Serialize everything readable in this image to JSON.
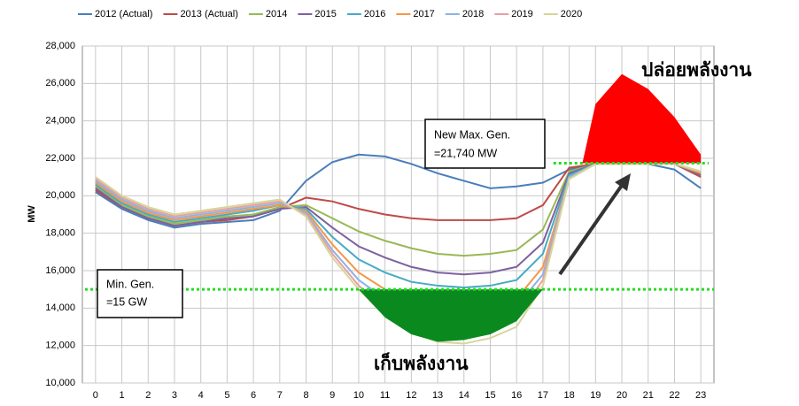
{
  "chart_data": {
    "type": "line",
    "ylabel": "MW",
    "x": [
      0,
      1,
      2,
      3,
      4,
      5,
      6,
      7,
      8,
      9,
      10,
      11,
      12,
      13,
      14,
      15,
      16,
      17,
      18,
      19,
      20,
      21,
      22,
      23
    ],
    "xlim": [
      -0.5,
      23.5
    ],
    "xticks": [
      0,
      1,
      2,
      3,
      4,
      5,
      6,
      7,
      8,
      9,
      10,
      11,
      12,
      13,
      14,
      15,
      16,
      17,
      18,
      19,
      20,
      21,
      22,
      23
    ],
    "ylim": [
      10000,
      28000
    ],
    "yticks": [
      {
        "value": 10000,
        "label": "10,000"
      },
      {
        "value": 12000,
        "label": "12,000"
      },
      {
        "value": 14000,
        "label": "14,000"
      },
      {
        "value": 16000,
        "label": "16,000"
      },
      {
        "value": 18000,
        "label": "18,000"
      },
      {
        "value": 20000,
        "label": "20,000"
      },
      {
        "value": 22000,
        "label": "22,000"
      },
      {
        "value": 24000,
        "label": "24,000"
      },
      {
        "value": 26000,
        "label": "26,000"
      },
      {
        "value": 28000,
        "label": "28,000"
      }
    ],
    "grid": true,
    "legend": "top",
    "series": [
      {
        "name": "2012 (Actual)",
        "color": "#4a7ebb",
        "values": [
          20200,
          19300,
          18700,
          18300,
          18500,
          18600,
          18700,
          19200,
          20800,
          21800,
          22200,
          22100,
          21700,
          21200,
          20800,
          20400,
          20500,
          20700,
          21400,
          21700,
          21700,
          21700,
          21400,
          20400
        ]
      },
      {
        "name": "2013 (Actual)",
        "color": "#be4b48",
        "values": [
          20300,
          19400,
          18800,
          18400,
          18600,
          18700,
          18900,
          19300,
          19900,
          19700,
          19300,
          19000,
          18800,
          18700,
          18700,
          18700,
          18800,
          19500,
          21500,
          21700,
          21700,
          21700,
          21700,
          21000
        ]
      },
      {
        "name": "2014",
        "color": "#98b954",
        "values": [
          20500,
          19500,
          18900,
          18500,
          18700,
          18900,
          19000,
          19400,
          19500,
          18800,
          18100,
          17600,
          17200,
          16900,
          16800,
          16900,
          17100,
          18200,
          21300,
          21700,
          21700,
          21700,
          21700,
          21100
        ]
      },
      {
        "name": "2015",
        "color": "#7d60a0",
        "values": [
          20400,
          19400,
          18800,
          18400,
          18600,
          18800,
          18900,
          19300,
          19400,
          18300,
          17300,
          16700,
          16200,
          15900,
          15800,
          15900,
          16200,
          17500,
          21200,
          21700,
          21700,
          21700,
          21700,
          21100
        ]
      },
      {
        "name": "2016",
        "color": "#46aac5",
        "values": [
          20600,
          19600,
          19000,
          18600,
          18800,
          19000,
          19200,
          19500,
          19300,
          17800,
          16600,
          15900,
          15400,
          15200,
          15100,
          15200,
          15500,
          16900,
          21100,
          21700,
          21700,
          21700,
          21700,
          21200
        ]
      },
      {
        "name": "2017",
        "color": "#f79646",
        "values": [
          20700,
          19700,
          19100,
          18700,
          18900,
          19100,
          19300,
          19500,
          19200,
          17400,
          15900,
          15000,
          14500,
          14200,
          14000,
          14200,
          14500,
          16200,
          21000,
          21700,
          21700,
          21700,
          21700,
          21200
        ]
      },
      {
        "name": "2018",
        "color": "#8db3e2",
        "values": [
          20800,
          19800,
          19200,
          18800,
          19000,
          19200,
          19400,
          19600,
          19100,
          17100,
          15500,
          14500,
          13900,
          13500,
          13400,
          13600,
          14100,
          15800,
          21000,
          21700,
          21700,
          21700,
          21700,
          21300
        ]
      },
      {
        "name": "2019",
        "color": "#e6a0a0",
        "values": [
          20900,
          19900,
          19300,
          18900,
          19100,
          19300,
          19500,
          19700,
          19000,
          16900,
          15200,
          14000,
          13300,
          12900,
          12800,
          13000,
          13500,
          15500,
          20900,
          21700,
          21700,
          21700,
          21700,
          21300
        ]
      },
      {
        "name": "2020",
        "color": "#d7d59a",
        "values": [
          21000,
          20000,
          19400,
          19000,
          19200,
          19400,
          19600,
          19800,
          18900,
          16700,
          15000,
          13600,
          12700,
          12200,
          12100,
          12400,
          13000,
          15200,
          20900,
          21700,
          21700,
          21700,
          21700,
          21300
        ]
      }
    ],
    "fill_areas": [
      {
        "color": "#ff0000",
        "base": 21740,
        "x": [
          18.5,
          19,
          20,
          21,
          22,
          23
        ],
        "values": [
          21740,
          24900,
          26500,
          25700,
          24200,
          22200
        ]
      },
      {
        "color": "#0a8a1e",
        "base": 15000,
        "x": [
          10,
          11,
          12,
          13,
          14,
          15,
          16,
          17
        ],
        "values": [
          15000,
          13500,
          12600,
          12200,
          12300,
          12600,
          13300,
          15000
        ]
      }
    ],
    "reference_lines": [
      {
        "value": 21740,
        "color": "#22dd22",
        "xspan": [
          17.4,
          23.3
        ]
      },
      {
        "value": 15000,
        "color": "#22dd22",
        "xspan": [
          -0.4,
          23.5
        ]
      }
    ],
    "annotations": {
      "max_box": [
        "New Max. Gen.",
        "=21,740 MW"
      ],
      "min_box": [
        "Min. Gen.",
        "=15 GW"
      ],
      "release": "ปล่อยพลังงาน",
      "store": "เก็บพลังงาน"
    }
  }
}
